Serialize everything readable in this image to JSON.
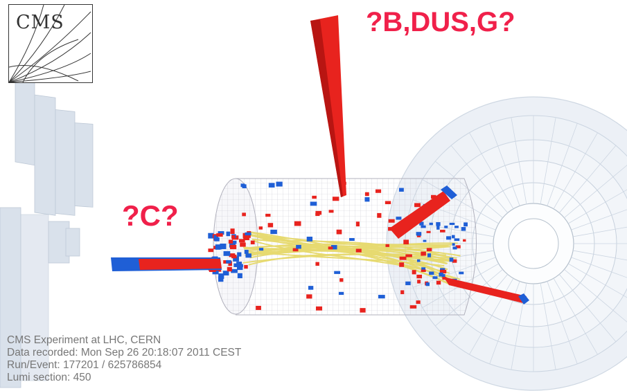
{
  "logo": {
    "text": "CMS"
  },
  "labels": {
    "bdusg": "?B,DUS,G?",
    "c": "?C?"
  },
  "info": {
    "line1": "CMS Experiment at LHC, CERN",
    "line2": "Data recorded: Mon Sep 26 20:18:07 2011 CEST",
    "line3": "Run/Event: 177201 / 625786854",
    "line4": "Lumi section: 450"
  },
  "colors": {
    "label": "#f0204a",
    "ecal": "#e8231e",
    "hcal": "#1f5fd6",
    "tracks": "#e6d96a",
    "detector": "#c9d6e6"
  }
}
